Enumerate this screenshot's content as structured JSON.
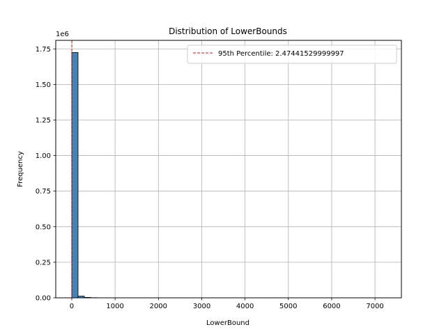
{
  "chart_data": {
    "type": "bar",
    "title": "Distribution of LowerBounds",
    "xlabel": "LowerBound",
    "ylabel": "Frequency",
    "y_offset_label": "1e6",
    "xlim": [
      -370,
      7610
    ],
    "ylim": [
      0,
      1.81
    ],
    "x_ticks": [
      0,
      1000,
      2000,
      3000,
      4000,
      5000,
      6000,
      7000
    ],
    "x_tick_labels": [
      "0",
      "1000",
      "2000",
      "3000",
      "4000",
      "5000",
      "6000",
      "7000"
    ],
    "y_ticks": [
      0,
      0.25,
      0.5,
      0.75,
      1.0,
      1.25,
      1.5,
      1.75
    ],
    "y_tick_labels": [
      "0.00",
      "0.25",
      "0.50",
      "0.75",
      "1.00",
      "1.25",
      "1.50",
      "1.75"
    ],
    "bins": [
      {
        "start": 0,
        "end": 145,
        "value": 1.725
      },
      {
        "start": 145,
        "end": 290,
        "value": 0.012
      },
      {
        "start": 290,
        "end": 435,
        "value": 0.003
      },
      {
        "start": 435,
        "end": 580,
        "value": 0.001
      }
    ],
    "bar_color": "#4682b4",
    "bar_edge_color": "#000000",
    "grid": true,
    "reference_line": {
      "x": 2.47441529999997,
      "label": "95th Percentile: 2.47441529999997",
      "color": "#ff0000",
      "style": "dashed"
    },
    "legend_position": "top-right"
  }
}
